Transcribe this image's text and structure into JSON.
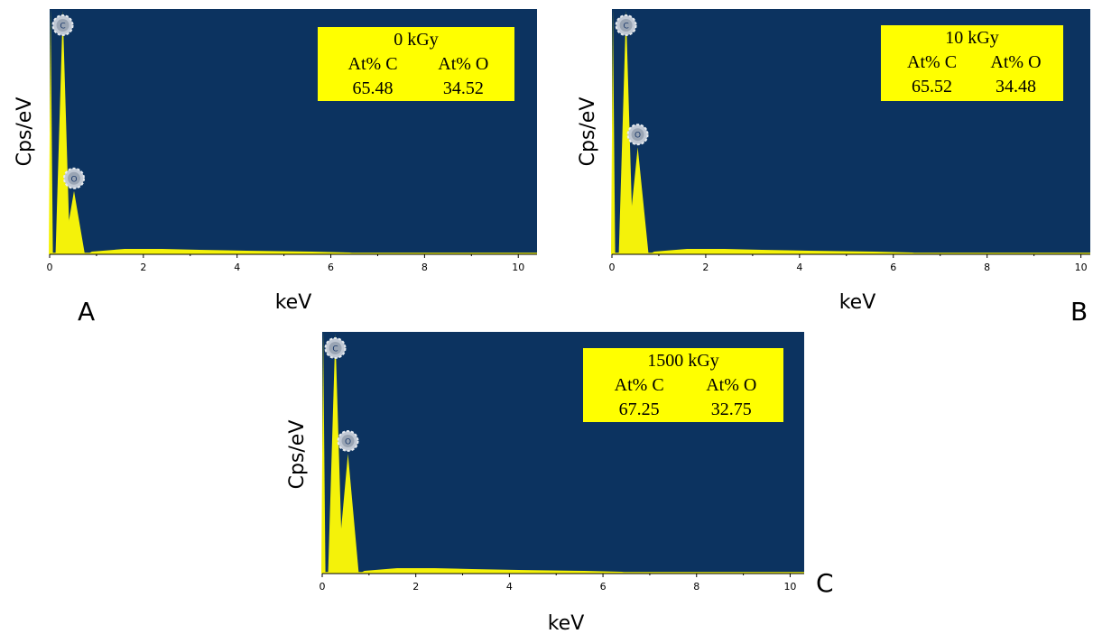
{
  "chart_data": [
    {
      "panel": "A",
      "type": "line",
      "xlabel": "keV",
      "ylabel": "Cps/eV",
      "xlim": [
        0,
        10.4
      ],
      "x_ticks": [
        "0",
        "2",
        "4",
        "6",
        "8",
        "10"
      ],
      "grid": false,
      "peaks": [
        {
          "element": "C",
          "x": 0.28,
          "y": 1.0
        },
        {
          "element": "O",
          "x": 0.52,
          "y": 0.26
        }
      ],
      "table": {
        "title": "0 kGy",
        "headers": [
          "At% C",
          "At% O"
        ],
        "values": [
          "65.48",
          "34.52"
        ]
      },
      "colors": {
        "background": "#0c3360",
        "spectrum": "#f4f20a",
        "table_bg": "#ffff00"
      }
    },
    {
      "panel": "B",
      "type": "line",
      "xlabel": "keV",
      "ylabel": "Cps/eV",
      "xlim": [
        0,
        10.2
      ],
      "x_ticks": [
        "0",
        "2",
        "4",
        "6",
        "8",
        "10"
      ],
      "grid": false,
      "peaks": [
        {
          "element": "C",
          "x": 0.3,
          "y": 1.0
        },
        {
          "element": "O",
          "x": 0.55,
          "y": 0.44
        }
      ],
      "table": {
        "title": "10 kGy",
        "headers": [
          "At% C",
          "At% O"
        ],
        "values": [
          "65.52",
          "34.48"
        ]
      },
      "colors": {
        "background": "#0c3360",
        "spectrum": "#f4f20a",
        "table_bg": "#ffff00"
      }
    },
    {
      "panel": "C",
      "type": "line",
      "xlabel": "keV",
      "ylabel": "Cps/eV",
      "xlim": [
        0,
        10.3
      ],
      "x_ticks": [
        "0",
        "2",
        "4",
        "6",
        "8",
        "10"
      ],
      "grid": false,
      "peaks": [
        {
          "element": "C",
          "x": 0.28,
          "y": 1.0
        },
        {
          "element": "O",
          "x": 0.55,
          "y": 0.5
        }
      ],
      "table": {
        "title": "1500 kGy",
        "headers": [
          "At% C",
          "At% O"
        ],
        "values": [
          "67.25",
          "32.75"
        ]
      },
      "colors": {
        "background": "#0c3360",
        "spectrum": "#f4f20a",
        "table_bg": "#ffff00"
      }
    }
  ]
}
